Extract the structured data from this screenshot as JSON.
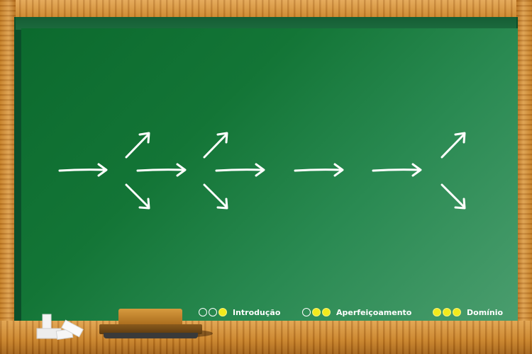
{
  "legend": [
    {
      "label": "Introdução",
      "filled": 1,
      "total": 3
    },
    {
      "label": "Aperfeiçoamento",
      "filled": 2,
      "total": 3
    },
    {
      "label": "Domínio",
      "filled": 3,
      "total": 3
    }
  ],
  "colors": {
    "board": "#137536",
    "frame": "#c8852a",
    "chalk": "#ffffff",
    "dot_filled": "#f2ea1c"
  },
  "icons": [
    "right-arrow-icon",
    "up-right-arrow-icon",
    "down-right-arrow-icon",
    "chalk-icon",
    "eraser-icon"
  ]
}
